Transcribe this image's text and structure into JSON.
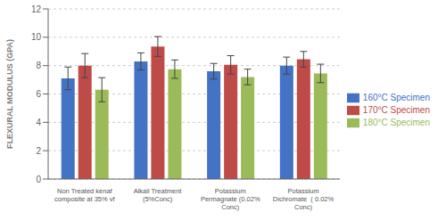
{
  "chart_data": {
    "type": "bar",
    "categories": [
      "Non Treated kenaf\ncomposite at 35% vf",
      "Alkali Treatment\n(5%Conc)",
      "Potassium\nPermagnate (0.02%\nConc)",
      "Potassium\nDichromate  ( 0.02%\nConc)"
    ],
    "series": [
      {
        "name": "160°C Specimen",
        "color": "#4472C4",
        "values": [
          7.1,
          8.3,
          7.6,
          8.0
        ],
        "errors": [
          0.8,
          0.6,
          0.55,
          0.6
        ]
      },
      {
        "name": "170°C Specimen",
        "color": "#BE4B48",
        "values": [
          8.0,
          9.35,
          8.05,
          8.45
        ],
        "errors": [
          0.85,
          0.7,
          0.65,
          0.55
        ]
      },
      {
        "name": "180°C Specimen",
        "color": "#9BBB59",
        "values": [
          6.3,
          7.75,
          7.2,
          7.45
        ],
        "errors": [
          0.85,
          0.65,
          0.55,
          0.65
        ]
      }
    ],
    "ylabel": "FLEXURAL MODULUS (GPA)",
    "ylim": [
      0,
      12
    ],
    "yticks": [
      0,
      2,
      4,
      6,
      8,
      10,
      12
    ],
    "grid": true,
    "legend": "right"
  }
}
